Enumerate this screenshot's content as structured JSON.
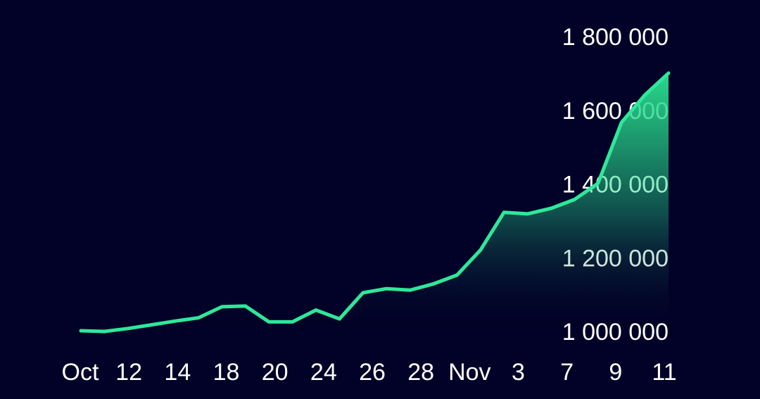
{
  "colors": {
    "background": "#020127",
    "line": "#2ee89a",
    "area_top": "#28d98c",
    "area_bottom": "#020127",
    "text": "#ffffff"
  },
  "chart_data": {
    "type": "area",
    "title": "",
    "xlabel": "",
    "ylabel": "",
    "grid": false,
    "legend": "none",
    "x_tick_labels": [
      "Oct",
      "12",
      "14",
      "18",
      "20",
      "24",
      "26",
      "28",
      "Nov",
      "3",
      "7",
      "9",
      "11"
    ],
    "y_tick_labels": [
      "1 000 000",
      "1 200 000",
      "1 400 000",
      "1 600 000",
      "1 800 000"
    ],
    "y_tick_values": [
      1000000,
      1200000,
      1400000,
      1600000,
      1800000
    ],
    "ylim": [
      1000000,
      1800000
    ],
    "series": [
      {
        "values": [
          1002000,
          1000000,
          1008000,
          1018000,
          1028000,
          1037000,
          1067000,
          1069000,
          1026000,
          1026000,
          1058000,
          1034000,
          1105000,
          1116000,
          1112000,
          1129000,
          1153000,
          1221000,
          1323000,
          1319000,
          1334000,
          1358000,
          1402000,
          1567000,
          1642000,
          1701000
        ]
      }
    ]
  }
}
